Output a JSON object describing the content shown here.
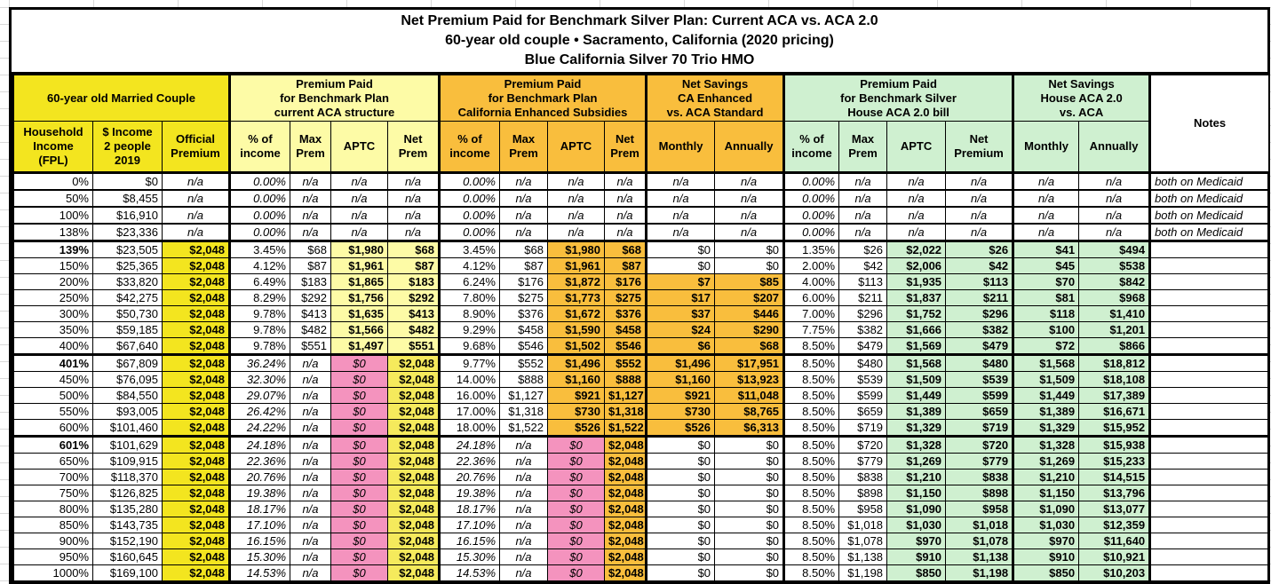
{
  "title": {
    "line1": "Net Premium Paid for Benchmark Silver Plan: Current ACA vs. ACA 2.0",
    "line2": "60-year old couple • Sacramento, California (2020 pricing)",
    "line3": "Blue California Silver 70 Trio HMO"
  },
  "colors": {
    "yellow": "#F3E51F",
    "pale_yellow": "#FDFBA6",
    "gold": "#F9BE3D",
    "green": "#CFF0D0",
    "pink": "#F493BE",
    "mid_yellow": "#F5EA5C",
    "border": "#000000"
  },
  "table": {
    "groups": [
      {
        "label": "60-year old Married Couple",
        "cols": 3,
        "bg": "yellow"
      },
      {
        "label": "Premium Paid\nfor Benchmark Plan\ncurrent ACA structure",
        "cols": 4,
        "bg": "paleYellow"
      },
      {
        "label": "Premium Paid\nfor Benchmark Plan\nCalifornia Enhanced Subsidies",
        "cols": 4,
        "bg": "gold"
      },
      {
        "label": "Net Savings\nCA Enhanced\nvs. ACA Standard",
        "cols": 2,
        "bg": "gold"
      },
      {
        "label": "Premium Paid\nfor Benchmark Silver\nHouse ACA 2.0 bill",
        "cols": 4,
        "bg": "green"
      },
      {
        "label": "Net Savings\nHouse ACA 2.0\nvs. ACA",
        "cols": 2,
        "bg": "green"
      },
      {
        "label": "Notes",
        "cols": 1,
        "bg": "white",
        "rowspan": 2
      }
    ],
    "subheaders": [
      "Household\nIncome\n(FPL)",
      "$ Income\n2 people\n2019",
      "Official\nPremium",
      "% of\nincome",
      "Max\nPrem",
      "APTC",
      "Net\nPrem",
      "% of\nincome",
      "Max\nPrem",
      "APTC",
      "Net\nPrem",
      "Monthly",
      "Annually",
      "% of\nincome",
      "Max\nPrem",
      "APTC",
      "Net\nPremium",
      "Monthly",
      "Annually"
    ],
    "bold_fpl": [
      "139%",
      "401%",
      "601%"
    ],
    "rows": [
      {
        "band": "medicaid",
        "cells": [
          "0%",
          "$0",
          "n/a",
          "0.00%",
          "n/a",
          "n/a",
          "n/a",
          "0.00%",
          "n/a",
          "n/a",
          "n/a",
          "n/a",
          "n/a",
          "0.00%",
          "n/a",
          "n/a",
          "n/a",
          "n/a",
          "n/a",
          "both on Medicaid"
        ]
      },
      {
        "band": "medicaid",
        "cells": [
          "50%",
          "$8,455",
          "n/a",
          "0.00%",
          "n/a",
          "n/a",
          "n/a",
          "0.00%",
          "n/a",
          "n/a",
          "n/a",
          "n/a",
          "n/a",
          "0.00%",
          "n/a",
          "n/a",
          "n/a",
          "n/a",
          "n/a",
          "both on Medicaid"
        ]
      },
      {
        "band": "medicaid",
        "cells": [
          "100%",
          "$16,910",
          "n/a",
          "0.00%",
          "n/a",
          "n/a",
          "n/a",
          "0.00%",
          "n/a",
          "n/a",
          "n/a",
          "n/a",
          "n/a",
          "0.00%",
          "n/a",
          "n/a",
          "n/a",
          "n/a",
          "n/a",
          "both on Medicaid"
        ]
      },
      {
        "band": "medicaid",
        "cells": [
          "138%",
          "$23,336",
          "n/a",
          "0.00%",
          "n/a",
          "n/a",
          "n/a",
          "0.00%",
          "n/a",
          "n/a",
          "n/a",
          "n/a",
          "n/a",
          "0.00%",
          "n/a",
          "n/a",
          "n/a",
          "n/a",
          "n/a",
          "both on Medicaid"
        ]
      },
      {
        "band": "subsidy",
        "cells": [
          "139%",
          "$23,505",
          "$2,048",
          "3.45%",
          "$68",
          "$1,980",
          "$68",
          "3.45%",
          "$68",
          "$1,980",
          "$68",
          "$0",
          "$0",
          "1.35%",
          "$26",
          "$2,022",
          "$26",
          "$41",
          "$494",
          ""
        ]
      },
      {
        "band": "subsidy",
        "cells": [
          "150%",
          "$25,365",
          "$2,048",
          "4.12%",
          "$87",
          "$1,961",
          "$87",
          "4.12%",
          "$87",
          "$1,961",
          "$87",
          "$0",
          "$0",
          "2.00%",
          "$42",
          "$2,006",
          "$42",
          "$45",
          "$538",
          ""
        ]
      },
      {
        "band": "subsidy",
        "cells": [
          "200%",
          "$33,820",
          "$2,048",
          "6.49%",
          "$183",
          "$1,865",
          "$183",
          "6.24%",
          "$176",
          "$1,872",
          "$176",
          "$7",
          "$85",
          "4.00%",
          "$113",
          "$1,935",
          "$113",
          "$70",
          "$842",
          ""
        ]
      },
      {
        "band": "subsidy",
        "cells": [
          "250%",
          "$42,275",
          "$2,048",
          "8.29%",
          "$292",
          "$1,756",
          "$292",
          "7.80%",
          "$275",
          "$1,773",
          "$275",
          "$17",
          "$207",
          "6.00%",
          "$211",
          "$1,837",
          "$211",
          "$81",
          "$968",
          ""
        ]
      },
      {
        "band": "subsidy",
        "cells": [
          "300%",
          "$50,730",
          "$2,048",
          "9.78%",
          "$413",
          "$1,635",
          "$413",
          "8.90%",
          "$376",
          "$1,672",
          "$376",
          "$37",
          "$446",
          "7.00%",
          "$296",
          "$1,752",
          "$296",
          "$118",
          "$1,410",
          ""
        ]
      },
      {
        "band": "subsidy",
        "cells": [
          "350%",
          "$59,185",
          "$2,048",
          "9.78%",
          "$482",
          "$1,566",
          "$482",
          "9.29%",
          "$458",
          "$1,590",
          "$458",
          "$24",
          "$290",
          "7.75%",
          "$382",
          "$1,666",
          "$382",
          "$100",
          "$1,201",
          ""
        ]
      },
      {
        "band": "subsidy",
        "cells": [
          "400%",
          "$67,640",
          "$2,048",
          "9.78%",
          "$551",
          "$1,497",
          "$551",
          "9.68%",
          "$546",
          "$1,502",
          "$546",
          "$6",
          "$68",
          "8.50%",
          "$479",
          "$1,569",
          "$479",
          "$72",
          "$866",
          ""
        ]
      },
      {
        "band": "mid",
        "cells": [
          "401%",
          "$67,809",
          "$2,048",
          "36.24%",
          "n/a",
          "$0",
          "$2,048",
          "9.77%",
          "$552",
          "$1,496",
          "$552",
          "$1,496",
          "$17,951",
          "8.50%",
          "$480",
          "$1,568",
          "$480",
          "$1,568",
          "$18,812",
          ""
        ]
      },
      {
        "band": "mid",
        "cells": [
          "450%",
          "$76,095",
          "$2,048",
          "32.30%",
          "n/a",
          "$0",
          "$2,048",
          "14.00%",
          "$888",
          "$1,160",
          "$888",
          "$1,160",
          "$13,923",
          "8.50%",
          "$539",
          "$1,509",
          "$539",
          "$1,509",
          "$18,108",
          ""
        ]
      },
      {
        "band": "mid",
        "cells": [
          "500%",
          "$84,550",
          "$2,048",
          "29.07%",
          "n/a",
          "$0",
          "$2,048",
          "16.00%",
          "$1,127",
          "$921",
          "$1,127",
          "$921",
          "$11,048",
          "8.50%",
          "$599",
          "$1,449",
          "$599",
          "$1,449",
          "$17,389",
          ""
        ]
      },
      {
        "band": "mid",
        "cells": [
          "550%",
          "$93,005",
          "$2,048",
          "26.42%",
          "n/a",
          "$0",
          "$2,048",
          "17.00%",
          "$1,318",
          "$730",
          "$1,318",
          "$730",
          "$8,765",
          "8.50%",
          "$659",
          "$1,389",
          "$659",
          "$1,389",
          "$16,671",
          ""
        ]
      },
      {
        "band": "mid",
        "cells": [
          "600%",
          "$101,460",
          "$2,048",
          "24.22%",
          "n/a",
          "$0",
          "$2,048",
          "18.00%",
          "$1,522",
          "$526",
          "$1,522",
          "$526",
          "$6,313",
          "8.50%",
          "$719",
          "$1,329",
          "$719",
          "$1,329",
          "$15,952",
          ""
        ]
      },
      {
        "band": "high",
        "cells": [
          "601%",
          "$101,629",
          "$2,048",
          "24.18%",
          "n/a",
          "$0",
          "$2,048",
          "24.18%",
          "n/a",
          "$0",
          "$2,048",
          "$0",
          "$0",
          "8.50%",
          "$720",
          "$1,328",
          "$720",
          "$1,328",
          "$15,938",
          ""
        ]
      },
      {
        "band": "high",
        "cells": [
          "650%",
          "$109,915",
          "$2,048",
          "22.36%",
          "n/a",
          "$0",
          "$2,048",
          "22.36%",
          "n/a",
          "$0",
          "$2,048",
          "$0",
          "$0",
          "8.50%",
          "$779",
          "$1,269",
          "$779",
          "$1,269",
          "$15,233",
          ""
        ]
      },
      {
        "band": "high",
        "cells": [
          "700%",
          "$118,370",
          "$2,048",
          "20.76%",
          "n/a",
          "$0",
          "$2,048",
          "20.76%",
          "n/a",
          "$0",
          "$2,048",
          "$0",
          "$0",
          "8.50%",
          "$838",
          "$1,210",
          "$838",
          "$1,210",
          "$14,515",
          ""
        ]
      },
      {
        "band": "high",
        "cells": [
          "750%",
          "$126,825",
          "$2,048",
          "19.38%",
          "n/a",
          "$0",
          "$2,048",
          "19.38%",
          "n/a",
          "$0",
          "$2,048",
          "$0",
          "$0",
          "8.50%",
          "$898",
          "$1,150",
          "$898",
          "$1,150",
          "$13,796",
          ""
        ]
      },
      {
        "band": "high",
        "cells": [
          "800%",
          "$135,280",
          "$2,048",
          "18.17%",
          "n/a",
          "$0",
          "$2,048",
          "18.17%",
          "n/a",
          "$0",
          "$2,048",
          "$0",
          "$0",
          "8.50%",
          "$958",
          "$1,090",
          "$958",
          "$1,090",
          "$13,077",
          ""
        ]
      },
      {
        "band": "high",
        "cells": [
          "850%",
          "$143,735",
          "$2,048",
          "17.10%",
          "n/a",
          "$0",
          "$2,048",
          "17.10%",
          "n/a",
          "$0",
          "$2,048",
          "$0",
          "$0",
          "8.50%",
          "$1,018",
          "$1,030",
          "$1,018",
          "$1,030",
          "$12,359",
          ""
        ]
      },
      {
        "band": "high",
        "cells": [
          "900%",
          "$152,190",
          "$2,048",
          "16.15%",
          "n/a",
          "$0",
          "$2,048",
          "16.15%",
          "n/a",
          "$0",
          "$2,048",
          "$0",
          "$0",
          "8.50%",
          "$1,078",
          "$970",
          "$1,078",
          "$970",
          "$11,640",
          ""
        ]
      },
      {
        "band": "high",
        "cells": [
          "950%",
          "$160,645",
          "$2,048",
          "15.30%",
          "n/a",
          "$0",
          "$2,048",
          "15.30%",
          "n/a",
          "$0",
          "$2,048",
          "$0",
          "$0",
          "8.50%",
          "$1,138",
          "$910",
          "$1,138",
          "$910",
          "$10,921",
          ""
        ]
      },
      {
        "band": "high",
        "cells": [
          "1000%",
          "$169,100",
          "$2,048",
          "14.53%",
          "n/a",
          "$0",
          "$2,048",
          "14.53%",
          "n/a",
          "$0",
          "$2,048",
          "$0",
          "$0",
          "8.50%",
          "$1,198",
          "$850",
          "$1,198",
          "$850",
          "$10,203",
          ""
        ]
      }
    ]
  }
}
